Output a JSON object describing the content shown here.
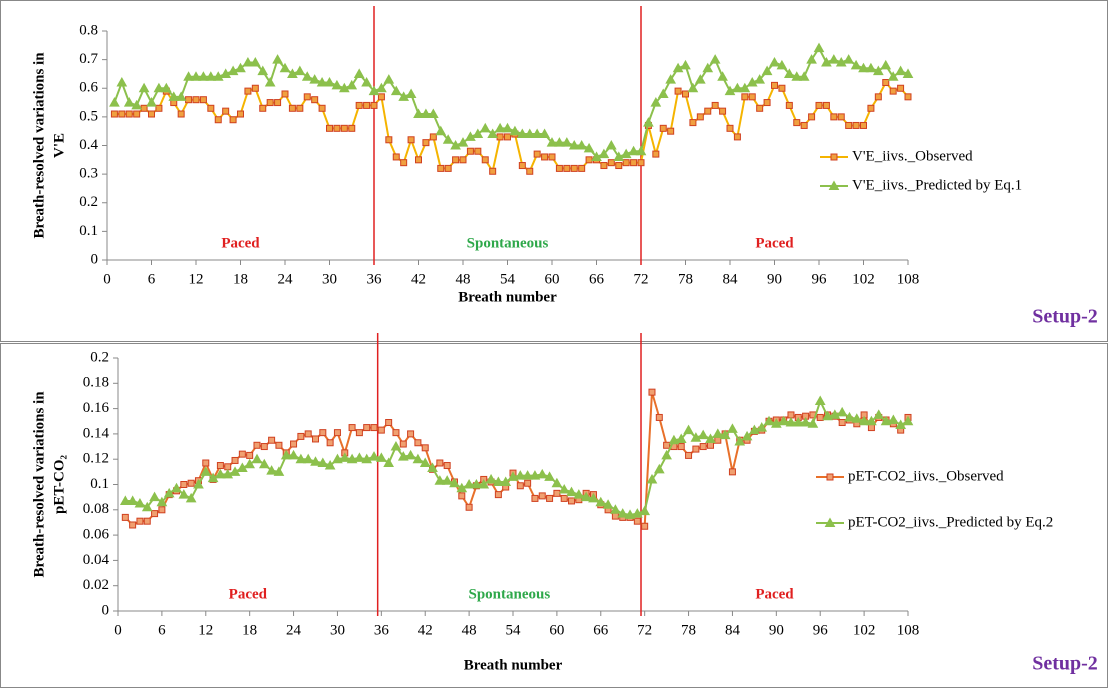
{
  "charts": [
    {
      "type": "line",
      "ylabel": [
        "Breath-resolved variations in",
        "V'E"
      ],
      "xlabel": "Breath number",
      "setup": "Setup-2",
      "x": [
        1,
        2,
        3,
        4,
        5,
        6,
        7,
        8,
        9,
        10,
        11,
        12,
        13,
        14,
        15,
        16,
        17,
        18,
        19,
        20,
        21,
        22,
        23,
        24,
        25,
        26,
        27,
        28,
        29,
        30,
        31,
        32,
        33,
        34,
        35,
        36,
        37,
        38,
        39,
        40,
        41,
        42,
        43,
        44,
        45,
        46,
        47,
        48,
        49,
        50,
        51,
        52,
        53,
        54,
        55,
        56,
        57,
        58,
        59,
        60,
        61,
        62,
        63,
        64,
        65,
        66,
        67,
        68,
        69,
        70,
        71,
        72,
        73,
        74,
        75,
        76,
        77,
        78,
        79,
        80,
        81,
        82,
        83,
        84,
        85,
        86,
        87,
        88,
        89,
        90,
        91,
        92,
        93,
        94,
        95,
        96,
        97,
        98,
        99,
        100,
        101,
        102,
        103,
        104,
        105,
        106,
        107,
        108
      ],
      "xlim": [
        0,
        108
      ],
      "xticks": [
        0,
        6,
        12,
        18,
        24,
        30,
        36,
        42,
        48,
        54,
        60,
        66,
        72,
        78,
        84,
        90,
        96,
        102,
        108
      ],
      "ylim": [
        0,
        0.8
      ],
      "yticks": [
        0,
        0.1,
        0.2,
        0.3,
        0.4,
        0.5,
        0.6,
        0.7,
        0.8
      ],
      "vlines": [
        36,
        72
      ],
      "vline_color": "#e02020",
      "regions": [
        {
          "label": "Paced",
          "color": "#e02020"
        },
        {
          "label": "Spontaneous",
          "color": "#2ea84a"
        },
        {
          "label": "Paced",
          "color": "#e02020"
        }
      ],
      "series": [
        {
          "name": "V'E_iivs._Observed",
          "color": "#f5b400",
          "marker": "square",
          "marker_color": "#f0a040",
          "marker_edge": "#d04020",
          "values": [
            0.51,
            0.51,
            0.51,
            0.51,
            0.53,
            0.51,
            0.53,
            0.59,
            0.55,
            0.51,
            0.56,
            0.56,
            0.56,
            0.53,
            0.49,
            0.52,
            0.49,
            0.51,
            0.59,
            0.6,
            0.53,
            0.55,
            0.55,
            0.58,
            0.53,
            0.53,
            0.57,
            0.56,
            0.53,
            0.46,
            0.46,
            0.46,
            0.46,
            0.54,
            0.54,
            0.54,
            0.57,
            0.42,
            0.36,
            0.34,
            0.42,
            0.35,
            0.41,
            0.43,
            0.32,
            0.32,
            0.35,
            0.35,
            0.38,
            0.38,
            0.35,
            0.31,
            0.43,
            0.43,
            0.44,
            0.33,
            0.31,
            0.37,
            0.36,
            0.36,
            0.32,
            0.32,
            0.32,
            0.32,
            0.35,
            0.35,
            0.33,
            0.34,
            0.33,
            0.34,
            0.34,
            0.34,
            0.47,
            0.37,
            0.46,
            0.45,
            0.59,
            0.58,
            0.48,
            0.5,
            0.52,
            0.54,
            0.52,
            0.46,
            0.43,
            0.57,
            0.57,
            0.53,
            0.55,
            0.61,
            0.6,
            0.54,
            0.48,
            0.47,
            0.5,
            0.54,
            0.54,
            0.5,
            0.5,
            0.47,
            0.47,
            0.47,
            0.53,
            0.57,
            0.62,
            0.59,
            0.6,
            0.57
          ]
        },
        {
          "name": "V'E_iivs._Predicted by Eq.1",
          "color": "#8cc04c",
          "marker": "triangle",
          "marker_color": "#8cc04c",
          "marker_edge": "#8cc04c",
          "values": [
            0.55,
            0.62,
            0.55,
            0.54,
            0.6,
            0.55,
            0.6,
            0.6,
            0.57,
            0.57,
            0.64,
            0.64,
            0.64,
            0.64,
            0.64,
            0.65,
            0.66,
            0.67,
            0.69,
            0.69,
            0.66,
            0.62,
            0.7,
            0.67,
            0.65,
            0.66,
            0.64,
            0.63,
            0.62,
            0.62,
            0.61,
            0.6,
            0.61,
            0.65,
            0.62,
            0.59,
            0.6,
            0.63,
            0.59,
            0.57,
            0.58,
            0.51,
            0.51,
            0.51,
            0.45,
            0.42,
            0.4,
            0.41,
            0.43,
            0.44,
            0.46,
            0.44,
            0.46,
            0.46,
            0.45,
            0.44,
            0.44,
            0.44,
            0.44,
            0.41,
            0.41,
            0.41,
            0.4,
            0.4,
            0.39,
            0.36,
            0.37,
            0.4,
            0.36,
            0.37,
            0.38,
            0.38,
            0.48,
            0.55,
            0.58,
            0.63,
            0.67,
            0.68,
            0.6,
            0.63,
            0.67,
            0.7,
            0.64,
            0.59,
            0.6,
            0.6,
            0.62,
            0.63,
            0.66,
            0.69,
            0.68,
            0.65,
            0.64,
            0.64,
            0.7,
            0.74,
            0.69,
            0.7,
            0.69,
            0.7,
            0.68,
            0.67,
            0.67,
            0.66,
            0.68,
            0.64,
            0.66,
            0.65
          ]
        }
      ]
    },
    {
      "type": "line",
      "ylabel": [
        "Breath-resolved variations in",
        "pET-CO₂"
      ],
      "xlabel": "Breath number",
      "setup": "Setup-2",
      "x": [
        1,
        2,
        3,
        4,
        5,
        6,
        7,
        8,
        9,
        10,
        11,
        12,
        13,
        14,
        15,
        16,
        17,
        18,
        19,
        20,
        21,
        22,
        23,
        24,
        25,
        26,
        27,
        28,
        29,
        30,
        31,
        32,
        33,
        34,
        35,
        36,
        37,
        38,
        39,
        40,
        41,
        42,
        43,
        44,
        45,
        46,
        47,
        48,
        49,
        50,
        51,
        52,
        53,
        54,
        55,
        56,
        57,
        58,
        59,
        60,
        61,
        62,
        63,
        64,
        65,
        66,
        67,
        68,
        69,
        70,
        71,
        72,
        73,
        74,
        75,
        76,
        77,
        78,
        79,
        80,
        81,
        82,
        83,
        84,
        85,
        86,
        87,
        88,
        89,
        90,
        91,
        92,
        93,
        94,
        95,
        96,
        97,
        98,
        99,
        100,
        101,
        102,
        103,
        104,
        105,
        106,
        107,
        108
      ],
      "xlim": [
        0,
        108
      ],
      "xticks": [
        0,
        6,
        12,
        18,
        24,
        30,
        36,
        42,
        48,
        54,
        60,
        66,
        72,
        78,
        84,
        90,
        96,
        102,
        108
      ],
      "ylim": [
        0,
        0.2
      ],
      "yticks": [
        0,
        0.02,
        0.04,
        0.06,
        0.08,
        0.1,
        0.12,
        0.14,
        0.16,
        0.18,
        0.2
      ],
      "vlines": [
        35.5,
        71.5
      ],
      "vline_color": "#e02020",
      "regions": [
        {
          "label": "Paced",
          "color": "#e02020"
        },
        {
          "label": "Spontaneous",
          "color": "#2ea84a"
        },
        {
          "label": "Paced",
          "color": "#e02020"
        }
      ],
      "series": [
        {
          "name": "pET-CO2_iivs._Observed",
          "color": "#e8702a",
          "marker": "square",
          "marker_color": "#f0a070",
          "marker_edge": "#d04020",
          "values": [
            0.074,
            0.068,
            0.071,
            0.071,
            0.077,
            0.08,
            0.092,
            0.095,
            0.1,
            0.101,
            0.103,
            0.117,
            0.104,
            0.115,
            0.114,
            0.119,
            0.124,
            0.123,
            0.131,
            0.13,
            0.135,
            0.131,
            0.125,
            0.132,
            0.138,
            0.14,
            0.136,
            0.141,
            0.133,
            0.141,
            0.125,
            0.145,
            0.141,
            0.145,
            0.145,
            0.143,
            0.149,
            0.141,
            0.132,
            0.14,
            0.133,
            0.129,
            0.112,
            0.117,
            0.115,
            0.102,
            0.091,
            0.082,
            0.099,
            0.104,
            0.102,
            0.092,
            0.098,
            0.109,
            0.099,
            0.101,
            0.089,
            0.091,
            0.089,
            0.093,
            0.089,
            0.087,
            0.088,
            0.093,
            0.092,
            0.084,
            0.08,
            0.075,
            0.074,
            0.074,
            0.071,
            0.067,
            0.173,
            0.153,
            0.131,
            0.13,
            0.13,
            0.123,
            0.128,
            0.13,
            0.131,
            0.135,
            0.14,
            0.11,
            0.135,
            0.135,
            0.142,
            0.143,
            0.15,
            0.151,
            0.151,
            0.155,
            0.153,
            0.154,
            0.155,
            0.153,
            0.155,
            0.154,
            0.149,
            0.151,
            0.148,
            0.155,
            0.145,
            0.153,
            0.151,
            0.148,
            0.143,
            0.153
          ]
        },
        {
          "name": "pET-CO2_iivs._Predicted by Eq.2",
          "color": "#8cc04c",
          "marker": "triangle",
          "marker_color": "#8cc04c",
          "marker_edge": "#8cc04c",
          "values": [
            0.087,
            0.087,
            0.085,
            0.082,
            0.09,
            0.086,
            0.093,
            0.097,
            0.092,
            0.089,
            0.1,
            0.11,
            0.105,
            0.108,
            0.108,
            0.11,
            0.113,
            0.116,
            0.12,
            0.116,
            0.111,
            0.11,
            0.123,
            0.123,
            0.12,
            0.12,
            0.118,
            0.117,
            0.115,
            0.12,
            0.121,
            0.12,
            0.121,
            0.12,
            0.122,
            0.121,
            0.117,
            0.13,
            0.122,
            0.123,
            0.12,
            0.117,
            0.113,
            0.103,
            0.103,
            0.101,
            0.097,
            0.1,
            0.1,
            0.1,
            0.104,
            0.102,
            0.102,
            0.106,
            0.107,
            0.107,
            0.107,
            0.108,
            0.106,
            0.101,
            0.096,
            0.094,
            0.092,
            0.09,
            0.089,
            0.086,
            0.084,
            0.08,
            0.077,
            0.076,
            0.077,
            0.079,
            0.104,
            0.112,
            0.123,
            0.135,
            0.136,
            0.143,
            0.137,
            0.139,
            0.136,
            0.14,
            0.139,
            0.144,
            0.134,
            0.138,
            0.143,
            0.145,
            0.15,
            0.148,
            0.15,
            0.149,
            0.149,
            0.149,
            0.148,
            0.166,
            0.154,
            0.155,
            0.157,
            0.153,
            0.152,
            0.15,
            0.15,
            0.155,
            0.15,
            0.151,
            0.147,
            0.15
          ]
        }
      ]
    }
  ]
}
